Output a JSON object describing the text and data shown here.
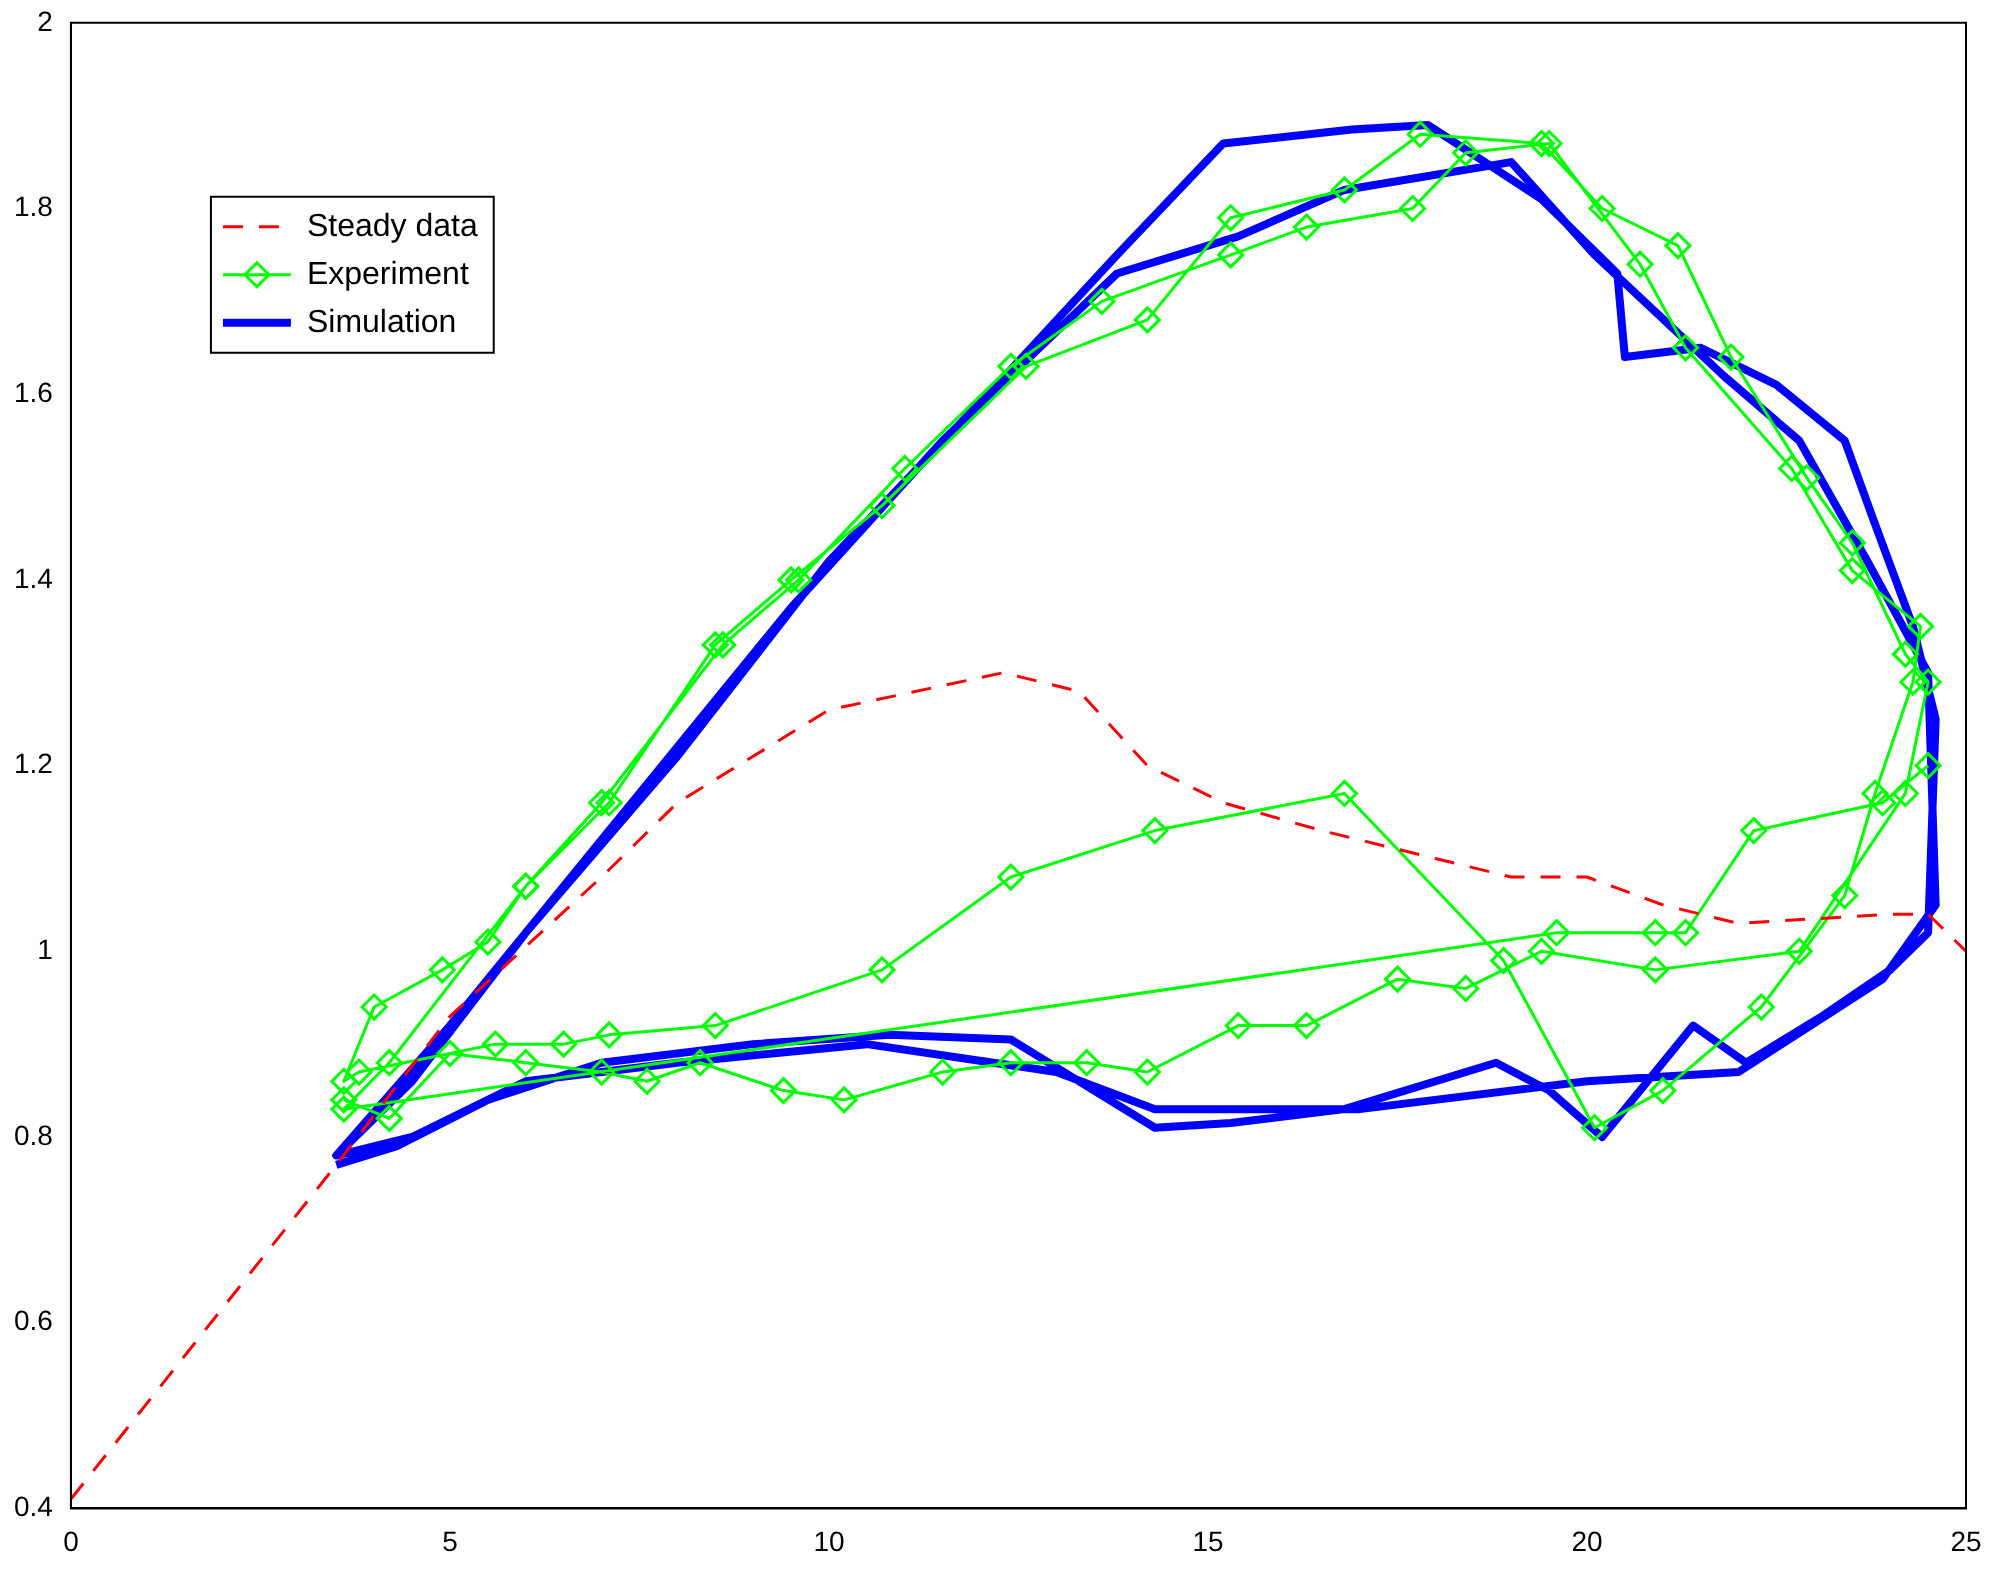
{
  "chart_data": {
    "type": "line",
    "xlim": [
      0,
      25
    ],
    "xticks": [
      0,
      5,
      10,
      15,
      20,
      25
    ],
    "ylim": [
      0.4,
      2
    ],
    "yticks": [
      0.4,
      0.6,
      0.8,
      1,
      1.2,
      1.4,
      1.6,
      1.8,
      2
    ],
    "grid": false,
    "legend": "top left",
    "series": [
      {
        "name": "Steady data",
        "color": "#ff0000",
        "line_style": "dashed",
        "marker": "none",
        "x": [
          0,
          3.5,
          5,
          7,
          8,
          10,
          12.3,
          13.3,
          14.2,
          15.2,
          16.5,
          18,
          19,
          20,
          21,
          22,
          23,
          24,
          24.5,
          25
        ],
        "values": [
          0.41,
          0.77,
          0.93,
          1.08,
          1.16,
          1.26,
          1.3,
          1.28,
          1.2,
          1.16,
          1.13,
          1.1,
          1.08,
          1.08,
          1.05,
          1.03,
          1.035,
          1.04,
          1.04,
          1.0
        ]
      },
      {
        "name": "Experiment",
        "color": "#00ff00",
        "line_style": "solid",
        "marker": "diamond",
        "x": [
          3.6,
          4.2,
          5,
          6,
          7,
          7.6,
          8.3,
          9.4,
          10.2,
          11.5,
          12.4,
          13.4,
          14.2,
          15.4,
          16.3,
          17.5,
          18.4,
          19.4,
          20.9,
          22.8,
          24.2,
          24.5,
          24.2,
          23.5,
          22.9,
          21.9,
          21.2,
          20.2,
          19.4,
          17.8,
          16.8,
          15.3,
          14.2,
          12.6,
          10.7,
          9.5,
          8.5,
          7.1,
          6,
          5.5,
          4.9,
          4,
          3.6,
          3.8,
          5.6,
          6.5,
          7.1,
          8.5,
          10.7,
          12.4,
          14.3,
          16.8,
          18.9,
          20.1,
          21,
          22.3,
          23.4,
          23.8,
          24.3,
          24.4,
          23.5,
          22.7,
          21.3,
          20.7,
          19.5,
          18.4,
          17.7,
          16.3,
          15.3,
          13.6,
          12.4,
          11,
          9.6,
          8.6,
          7,
          6,
          4.2,
          3.6,
          19.6,
          20.9,
          21.3,
          22.2,
          23.9,
          24.5
        ],
        "values": [
          0.84,
          0.82,
          0.89,
          0.88,
          0.87,
          0.86,
          0.88,
          0.85,
          0.84,
          0.87,
          0.88,
          0.88,
          0.87,
          0.92,
          0.92,
          0.97,
          0.96,
          1.0,
          0.98,
          1.0,
          1.17,
          1.29,
          1.32,
          1.44,
          1.51,
          1.64,
          1.76,
          1.8,
          1.87,
          1.88,
          1.82,
          1.79,
          1.68,
          1.63,
          1.48,
          1.4,
          1.33,
          1.16,
          1.07,
          1.01,
          0.98,
          0.94,
          0.86,
          0.87,
          0.9,
          0.9,
          0.91,
          0.92,
          0.98,
          1.08,
          1.13,
          1.17,
          0.99,
          0.81,
          0.85,
          0.94,
          1.06,
          1.17,
          1.29,
          1.35,
          1.41,
          1.52,
          1.65,
          1.74,
          1.87,
          1.86,
          1.8,
          1.78,
          1.75,
          1.7,
          1.63,
          1.52,
          1.4,
          1.33,
          1.16,
          1.07,
          0.88,
          0.83,
          1.02,
          1.02,
          1.02,
          1.13,
          1.16,
          1.2
        ]
      },
      {
        "name": "Simulation",
        "color": "#0000ff",
        "line_style": "solid",
        "marker": "none",
        "x": [
          3.5,
          4.3,
          5.5,
          7,
          9,
          10.8,
          12.4,
          13.3,
          14.3,
          15.3,
          16.8,
          18.8,
          19.5,
          20.2,
          21.4,
          22.1,
          23.1,
          24,
          24.5,
          24.6,
          24.3,
          23.8,
          23.4,
          22.5,
          21.5,
          20.5,
          20.4,
          19.4,
          17.9,
          16.9,
          15.2,
          13.8,
          12.1,
          10,
          8,
          6,
          4.5,
          3.5,
          4.5,
          6,
          8,
          10.5,
          13,
          14.3,
          17,
          20,
          22,
          23.9,
          24.6,
          24.5,
          23.7,
          22.8,
          21.8,
          20.1,
          19,
          16.8,
          15.4,
          13.8,
          11.5,
          9.5,
          7,
          5,
          3.5
        ],
        "values": [
          0.77,
          0.79,
          0.84,
          0.88,
          0.9,
          0.91,
          0.905,
          0.86,
          0.81,
          0.815,
          0.83,
          0.88,
          0.85,
          0.8,
          0.92,
          0.88,
          0.93,
          0.98,
          1.02,
          1.25,
          1.35,
          1.46,
          1.55,
          1.61,
          1.65,
          1.64,
          1.73,
          1.81,
          1.89,
          1.885,
          1.87,
          1.75,
          1.6,
          1.42,
          1.21,
          1.02,
          0.86,
          0.78,
          0.8,
          0.86,
          0.88,
          0.9,
          0.87,
          0.83,
          0.83,
          0.86,
          0.87,
          0.97,
          1.05,
          1.3,
          1.42,
          1.55,
          1.62,
          1.75,
          1.85,
          1.82,
          1.77,
          1.73,
          1.55,
          1.37,
          1.12,
          0.92,
          0.78
        ]
      }
    ]
  }
}
